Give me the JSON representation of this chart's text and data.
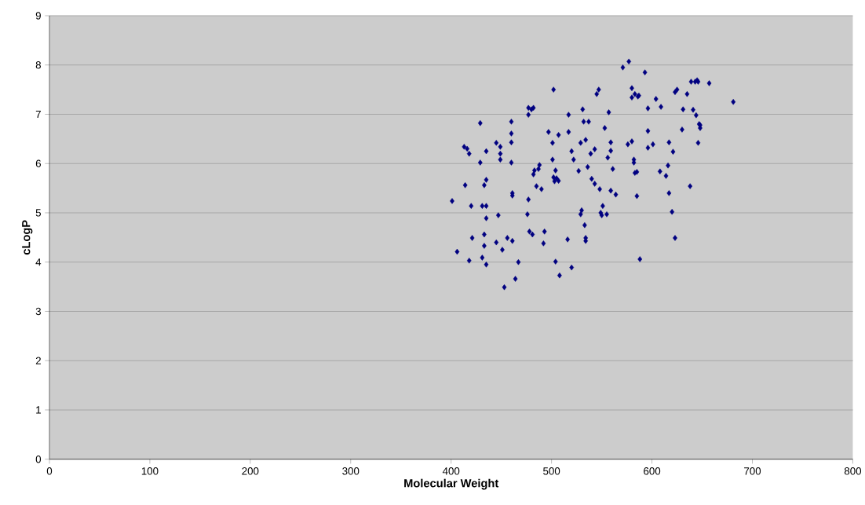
{
  "chart_data": {
    "type": "scatter",
    "xlabel": "Molecular Weight",
    "ylabel": "cLogP",
    "x": [
      401,
      406,
      414,
      413,
      416,
      418,
      418,
      420,
      421,
      429,
      429,
      431,
      431,
      433,
      435,
      433,
      433,
      435,
      435,
      435,
      435,
      445,
      445,
      447,
      449,
      449,
      449,
      451,
      453,
      456,
      460,
      460,
      460,
      460,
      461,
      461,
      461,
      464,
      467,
      476,
      477,
      477,
      477,
      480,
      482,
      478,
      481,
      482,
      483,
      485,
      487,
      488,
      490,
      493,
      492,
      497,
      502,
      501,
      501,
      502,
      503,
      504,
      505,
      507,
      504,
      507,
      508,
      516,
      517,
      517,
      520,
      520,
      522,
      527,
      529,
      529,
      530,
      531,
      532,
      534,
      533,
      534,
      534,
      537,
      536,
      539,
      540,
      543,
      543,
      545,
      547,
      548,
      549,
      550,
      551,
      553,
      555,
      557,
      556,
      559,
      559,
      559,
      561,
      564,
      571,
      576,
      580,
      577,
      580,
      580,
      582,
      583,
      582,
      583,
      585,
      585,
      586,
      587,
      588,
      593,
      596,
      596,
      596,
      601,
      604,
      608,
      609,
      614,
      616,
      617,
      617,
      621,
      620,
      623,
      625,
      623,
      630,
      631,
      635,
      638,
      639,
      643,
      641,
      644,
      645,
      646,
      646,
      647,
      648,
      648,
      657,
      681
    ],
    "values": [
      5.24,
      4.21,
      5.56,
      6.34,
      6.3,
      6.2,
      4.03,
      5.14,
      4.49,
      6.82,
      6.02,
      5.14,
      4.09,
      5.56,
      5.67,
      4.56,
      4.33,
      6.25,
      3.95,
      4.89,
      5.14,
      6.42,
      4.4,
      4.95,
      6.34,
      6.2,
      6.08,
      4.25,
      3.49,
      4.49,
      6.85,
      6.61,
      6.43,
      6.02,
      5.4,
      5.35,
      4.43,
      3.66,
      4.0,
      4.97,
      5.27,
      6.99,
      7.13,
      7.1,
      7.13,
      4.62,
      4.56,
      5.78,
      5.86,
      5.54,
      5.89,
      5.97,
      5.48,
      4.62,
      4.38,
      6.64,
      7.5,
      6.42,
      6.08,
      5.72,
      5.64,
      5.86,
      5.7,
      5.65,
      4.01,
      6.58,
      3.73,
      4.46,
      6.64,
      6.99,
      6.25,
      3.89,
      6.08,
      5.85,
      6.42,
      4.97,
      5.05,
      7.1,
      6.85,
      6.48,
      4.75,
      4.49,
      4.43,
      6.85,
      5.93,
      6.2,
      5.69,
      6.29,
      5.59,
      7.41,
      7.5,
      5.48,
      5.0,
      4.95,
      5.14,
      6.72,
      4.97,
      7.04,
      6.12,
      6.43,
      6.26,
      5.45,
      5.89,
      5.37,
      7.95,
      6.39,
      6.45,
      8.07,
      7.53,
      7.34,
      6.08,
      7.41,
      6.02,
      5.81,
      5.83,
      5.34,
      7.36,
      7.38,
      4.06,
      7.85,
      6.66,
      7.12,
      6.32,
      6.39,
      7.31,
      5.84,
      7.15,
      5.75,
      5.96,
      6.43,
      5.4,
      6.24,
      5.02,
      7.45,
      7.5,
      4.49,
      6.69,
      7.1,
      7.41,
      5.54,
      7.66,
      7.66,
      7.09,
      6.98,
      7.69,
      7.66,
      6.42,
      6.8,
      6.78,
      6.72,
      7.63,
      7.25
    ],
    "color": "#000080",
    "marker": "diamond",
    "grid": "y",
    "xlim": [
      0,
      800
    ],
    "ylim": [
      0,
      9
    ],
    "xticks": [
      0,
      100,
      200,
      300,
      400,
      500,
      600,
      700,
      800
    ],
    "yticks": [
      0,
      1,
      2,
      3,
      4,
      5,
      6,
      7,
      8,
      9
    ]
  }
}
